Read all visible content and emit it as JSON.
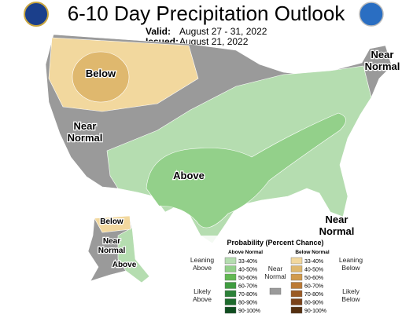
{
  "header": {
    "title": "6-10 Day Precipitation Outlook",
    "valid_label": "Valid:",
    "valid_dates": "August 27 - 31, 2022",
    "issued_label": "Issued:",
    "issued_date": "August 21, 2022"
  },
  "map_labels": {
    "below_west": "Below",
    "near_normal_west": [
      "Near",
      "Normal"
    ],
    "above_central": "Above",
    "near_normal_northeast": [
      "Near",
      "Normal"
    ],
    "near_normal_southeast": [
      "Near",
      "Normal"
    ],
    "alaska_below": "Below",
    "alaska_near_normal": [
      "Near",
      "Normal"
    ],
    "alaska_above": "Above"
  },
  "legend": {
    "title": "Probability (Percent Chance)",
    "above": {
      "heading": "Above Normal",
      "leaning": [
        "Leaning",
        "Above"
      ],
      "likely": [
        "Likely",
        "Above"
      ],
      "items": [
        {
          "label": "33-40%",
          "color": "#b5ddb0"
        },
        {
          "label": "40-50%",
          "color": "#93d08a"
        },
        {
          "label": "50-60%",
          "color": "#62b852"
        },
        {
          "label": "60-70%",
          "color": "#3f9c40"
        },
        {
          "label": "70-80%",
          "color": "#2c8138"
        },
        {
          "label": "80-90%",
          "color": "#1d6a2c"
        },
        {
          "label": "90-100%",
          "color": "#0f4d1f"
        }
      ]
    },
    "near": {
      "heading": [
        "Near",
        "Normal"
      ],
      "color": "#9a9a9a"
    },
    "below": {
      "heading": "Below Normal",
      "leaning": [
        "Leaning",
        "Below"
      ],
      "likely": [
        "Likely",
        "Below"
      ],
      "items": [
        {
          "label": "33-40%",
          "color": "#f2d89e"
        },
        {
          "label": "40-50%",
          "color": "#dfb86e"
        },
        {
          "label": "50-60%",
          "color": "#d19a4c"
        },
        {
          "label": "60-70%",
          "color": "#bb7a35"
        },
        {
          "label": "70-80%",
          "color": "#9a5a25"
        },
        {
          "label": "80-90%",
          "color": "#7a4219"
        },
        {
          "label": "90-100%",
          "color": "#55300f"
        }
      ]
    }
  }
}
